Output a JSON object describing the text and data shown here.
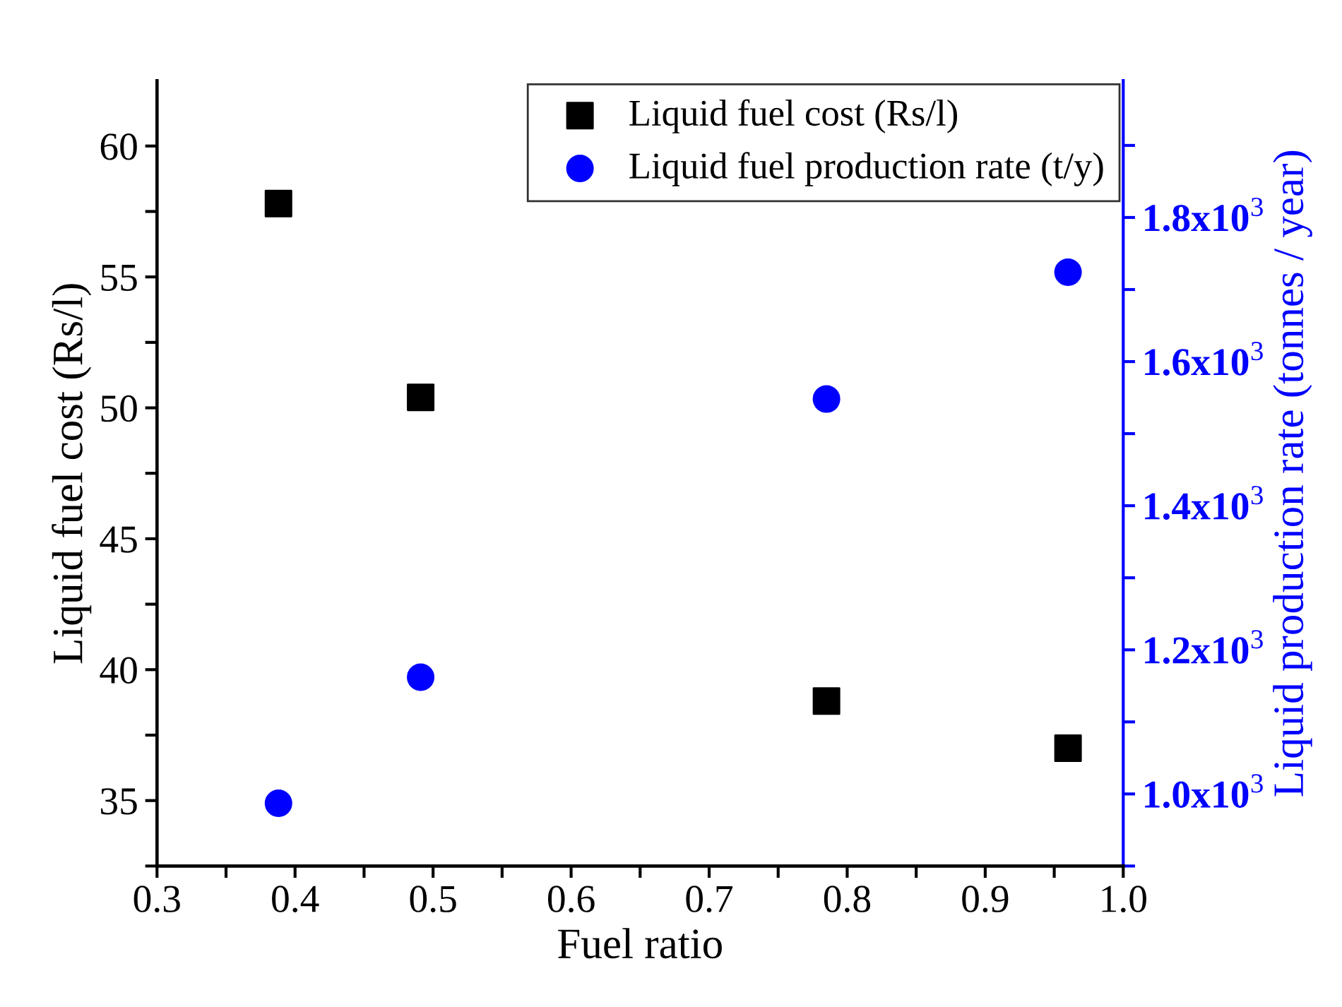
{
  "chart_data": {
    "type": "scatter",
    "xlabel": "Fuel ratio",
    "ylabel": "Liquid fuel cost (Rs/l)",
    "y2label": "Liquid production rate (tonnes / year)",
    "x": [
      0.388,
      0.491,
      0.785,
      0.96
    ],
    "series": [
      {
        "name": "Liquid fuel cost (Rs/l)",
        "color": "#000000",
        "marker": "square",
        "values": [
          57.8,
          50.4,
          38.8,
          37.0
        ]
      },
      {
        "name": "Liquid fuel production rate (t/y)",
        "color": "#0000ff",
        "marker": "circle",
        "axis": "y2",
        "values": [
          987,
          1162,
          1548,
          1724
        ]
      }
    ],
    "xlim": [
      0.3,
      1.0
    ],
    "xticks": [
      0.3,
      {
        "value": 0.35,
        "label": null
      },
      0.4,
      {
        "value": 0.45,
        "label": null
      },
      0.5,
      {
        "value": 0.55,
        "label": null
      },
      0.6,
      {
        "value": 0.65,
        "label": null
      },
      0.7,
      {
        "value": 0.75,
        "label": null
      },
      0.8,
      {
        "value": 0.85,
        "label": null
      },
      0.9,
      {
        "value": 0.95,
        "label": null
      },
      {
        "value": 1.0,
        "label": "1.0"
      }
    ],
    "ylim": [
      32.5,
      62.5
    ],
    "yticks": [
      {
        "value": 32.5,
        "label": null
      },
      35,
      {
        "value": 37.5,
        "label": null
      },
      40,
      {
        "value": 42.5,
        "label": null
      },
      45,
      {
        "value": 47.5,
        "label": null
      },
      50,
      {
        "value": 52.5,
        "label": null
      },
      55,
      {
        "value": 57.5,
        "label": null
      },
      60
    ],
    "y2lim": [
      900,
      1990
    ],
    "y2ticks": [
      {
        "value": 900,
        "label": null
      },
      {
        "value": 1000,
        "label": "1.0x10$^{3}$"
      },
      {
        "value": 1100,
        "label": null
      },
      {
        "value": 1200,
        "label": "1.2x10$^{3}$"
      },
      {
        "value": 1300,
        "label": null
      },
      {
        "value": 1400,
        "label": "1.4x10$^{3}$"
      },
      {
        "value": 1500,
        "label": null
      },
      {
        "value": 1600,
        "label": "1.6x10$^{3}$"
      },
      {
        "value": 1700,
        "label": null
      },
      {
        "value": 1800,
        "label": "1.8x10$^{3}$"
      },
      {
        "value": 1900,
        "label": null
      }
    ],
    "legend": "top right",
    "grid": false
  }
}
